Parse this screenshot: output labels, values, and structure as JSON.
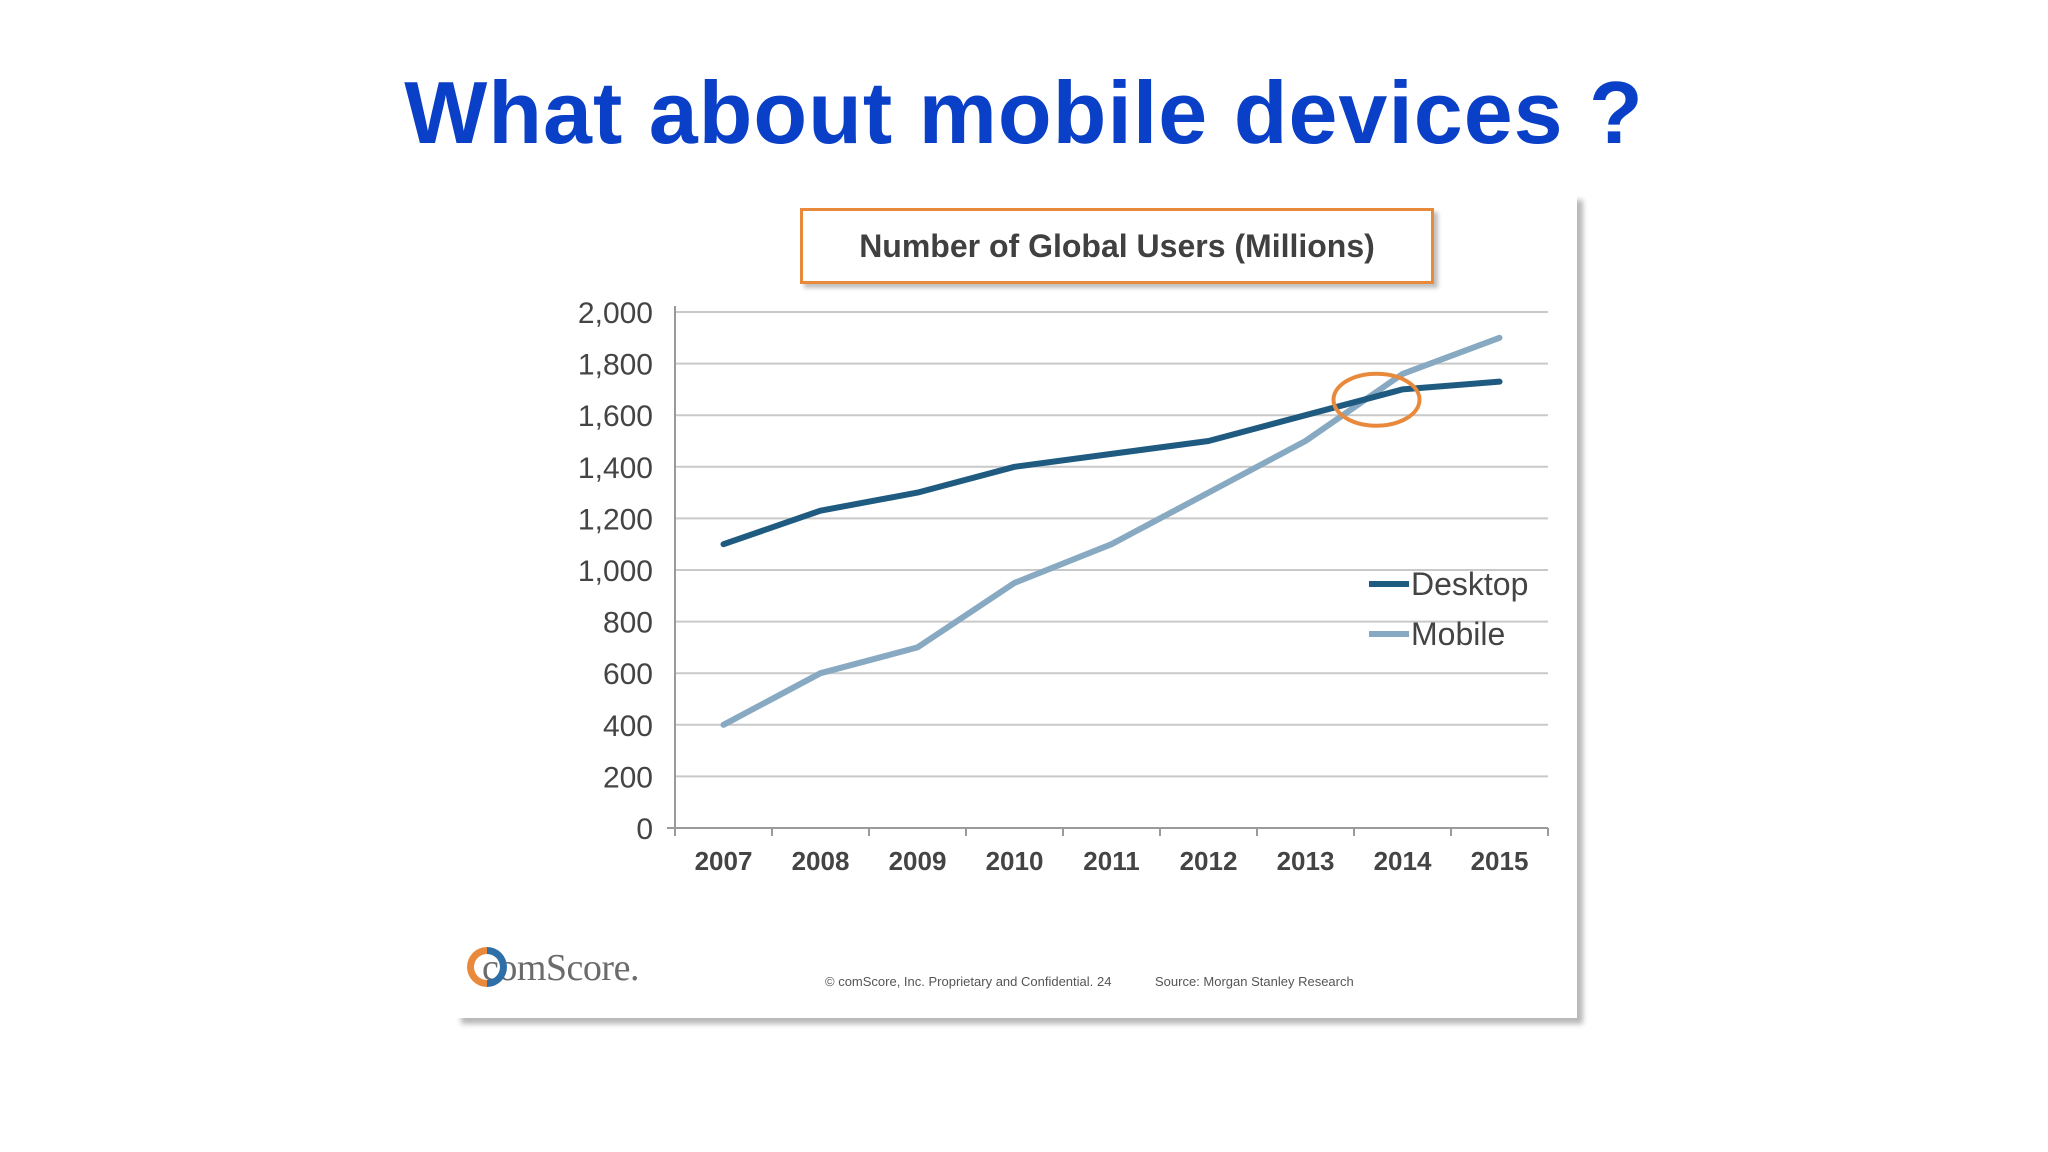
{
  "slide": {
    "title": "What about mobile devices ?"
  },
  "chart_data": {
    "type": "line",
    "title": "Number of Global Users (Millions)",
    "xlabel": "",
    "ylabel": "",
    "categories": [
      "2007",
      "2008",
      "2009",
      "2010",
      "2011",
      "2012",
      "2013",
      "2014",
      "2015"
    ],
    "y_ticks": [
      "0",
      "200",
      "400",
      "600",
      "800",
      "1,000",
      "1,200",
      "1,400",
      "1,600",
      "1,800",
      "2,000"
    ],
    "ylim": [
      0,
      2000
    ],
    "grid": true,
    "legend_position": "right",
    "series": [
      {
        "name": "Desktop",
        "color": "#1f5b80",
        "values": [
          1100,
          1230,
          1300,
          1400,
          1450,
          1500,
          1600,
          1700,
          1730
        ]
      },
      {
        "name": "Mobile",
        "color": "#87a9c2",
        "values": [
          400,
          600,
          700,
          950,
          1100,
          1300,
          1500,
          1760,
          1900
        ]
      }
    ],
    "annotation": {
      "type": "circle",
      "x": "2014",
      "y": 1660,
      "color": "#e8893b"
    }
  },
  "footer": {
    "logo_text": "comScore.",
    "copyright": "© comScore, Inc.   Proprietary and Confidential.",
    "page_number": "24",
    "source": "Source: Morgan Stanley Research",
    "logo_colors": [
      "#e8893b",
      "#2f6fa7"
    ]
  }
}
